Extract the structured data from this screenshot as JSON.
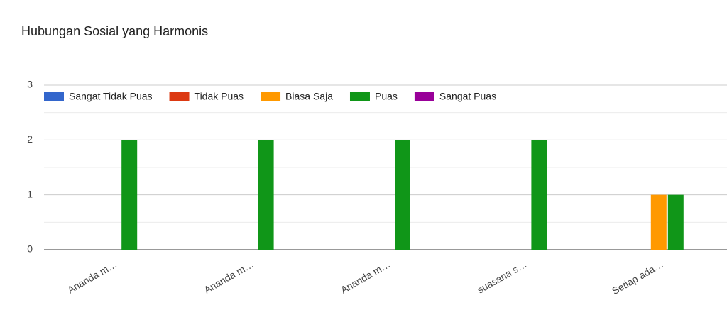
{
  "chart_data": {
    "type": "bar",
    "title": "Hubungan Sosial yang Harmonis",
    "categories": [
      "Ananda m…",
      "Ananda m…",
      "Ananda m…",
      "suasana s…",
      "Setiap ada…"
    ],
    "series": [
      {
        "name": "Sangat Tidak Puas",
        "color": "#3366cc",
        "values": [
          0,
          0,
          0,
          0,
          0
        ]
      },
      {
        "name": "Tidak Puas",
        "color": "#dc3912",
        "values": [
          0,
          0,
          0,
          0,
          0
        ]
      },
      {
        "name": "Biasa Saja",
        "color": "#ff9900",
        "values": [
          0,
          0,
          0,
          0,
          1
        ]
      },
      {
        "name": "Puas",
        "color": "#109618",
        "values": [
          2,
          2,
          2,
          2,
          1
        ]
      },
      {
        "name": "Sangat Puas",
        "color": "#990099",
        "values": [
          0,
          0,
          0,
          0,
          0
        ]
      }
    ],
    "ylim": [
      0,
      3
    ],
    "yticks": [
      0,
      1,
      2,
      3
    ],
    "minor_yticks": [
      0.5,
      1.5,
      2.5
    ],
    "grid": true,
    "legend": "top"
  }
}
